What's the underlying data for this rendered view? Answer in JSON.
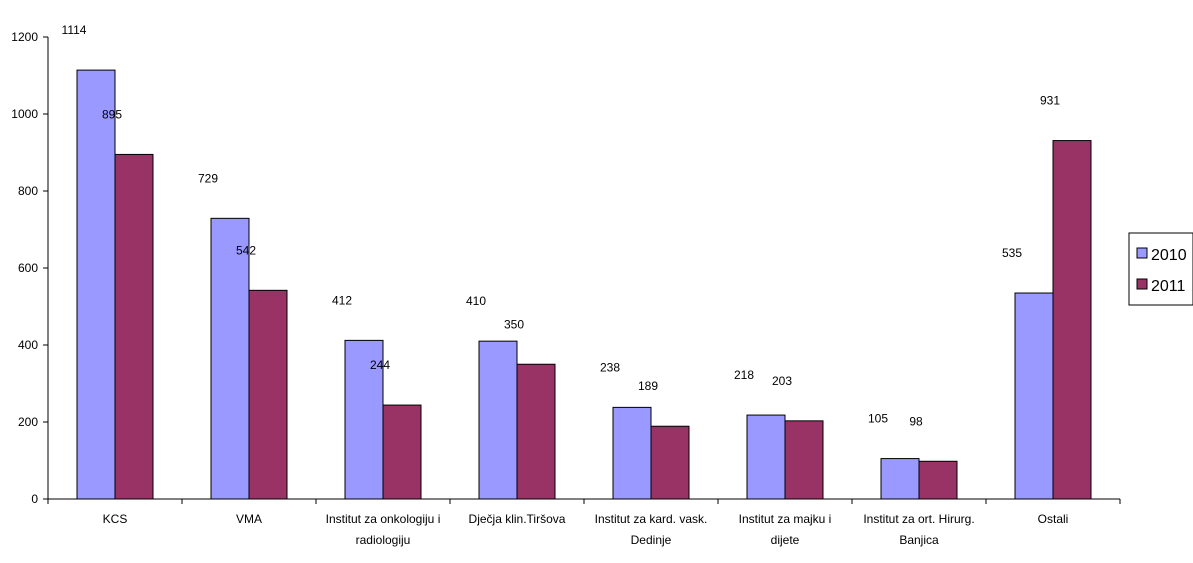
{
  "chart_data": {
    "type": "bar",
    "categories": [
      [
        "KCS"
      ],
      [
        "VMA"
      ],
      [
        "Institut za onkologiju i",
        "radiologiju"
      ],
      [
        "Dječja klin.Tiršova"
      ],
      [
        "Institut za kard. vask.",
        "Dedinje"
      ],
      [
        "Institut za majku i",
        "dijete"
      ],
      [
        "Institut za ort. Hirurg.",
        "Banjica"
      ],
      [
        "Ostali"
      ]
    ],
    "series": [
      {
        "name": "2010",
        "color": "#9999ff",
        "values": [
          1114,
          729,
          412,
          410,
          238,
          218,
          105,
          535
        ]
      },
      {
        "name": "2011",
        "color": "#993366",
        "values": [
          895,
          542,
          244,
          350,
          189,
          203,
          98,
          931
        ]
      }
    ],
    "ylim": [
      0,
      1200
    ],
    "yticks": [
      0,
      200,
      400,
      600,
      800,
      1000,
      1200
    ],
    "grid": false,
    "legend_position": "right",
    "title": "",
    "xlabel": "",
    "ylabel": ""
  }
}
